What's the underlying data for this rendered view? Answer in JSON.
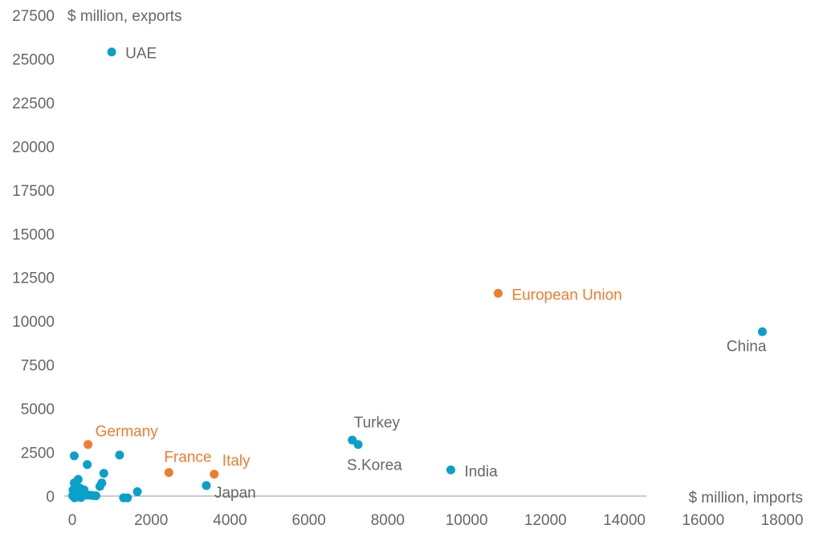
{
  "chart_data": {
    "type": "scatter",
    "title": "",
    "xlabel": "$ million, imports",
    "ylabel": "$ million, exports",
    "xlim": [
      0,
      18000
    ],
    "ylim": [
      0,
      27500
    ],
    "x_ticks": [
      "0",
      "2000",
      "4000",
      "6000",
      "8000",
      "10000",
      "12000",
      "14000",
      "16000",
      "18000"
    ],
    "y_ticks": [
      "0",
      "2500",
      "5000",
      "7500",
      "10000",
      "12500",
      "15000",
      "17500",
      "20000",
      "22500",
      "25000",
      "27500"
    ],
    "grid": false,
    "colors": {
      "blue": "#0aa0cc",
      "orange": "#ef7d2d",
      "label_gray": "#666666"
    },
    "points": [
      {
        "x": 1000,
        "y": 25400,
        "color": "blue",
        "label": "UAE",
        "label_color": "#666666"
      },
      {
        "x": 17500,
        "y": 9400,
        "color": "blue",
        "label": "China",
        "label_color": "#666666"
      },
      {
        "x": 10800,
        "y": 11600,
        "color": "orange",
        "label": "European Union",
        "label_color": "#ef7d2d"
      },
      {
        "x": 9600,
        "y": 1500,
        "color": "blue",
        "label": "India",
        "label_color": "#666666"
      },
      {
        "x": 7100,
        "y": 3200,
        "color": "blue",
        "label": "Turkey",
        "label_color": "#666666"
      },
      {
        "x": 7250,
        "y": 2950,
        "color": "blue",
        "label": "S.Korea",
        "label_color": "#666666"
      },
      {
        "x": 3400,
        "y": 600,
        "color": "blue",
        "label": "Japan",
        "label_color": "#666666"
      },
      {
        "x": 400,
        "y": 2950,
        "color": "orange",
        "label": "Germany",
        "label_color": "#ef7d2d"
      },
      {
        "x": 2450,
        "y": 1350,
        "color": "orange",
        "label": "France",
        "label_color": "#ef7d2d"
      },
      {
        "x": 3600,
        "y": 1250,
        "color": "orange",
        "label": "Italy",
        "label_color": "#ef7d2d"
      },
      {
        "x": 1200,
        "y": 2350,
        "color": "blue",
        "label": ""
      },
      {
        "x": 50,
        "y": 2300,
        "color": "blue",
        "label": ""
      },
      {
        "x": 380,
        "y": 1800,
        "color": "blue",
        "label": ""
      },
      {
        "x": 800,
        "y": 1300,
        "color": "blue",
        "label": ""
      },
      {
        "x": 750,
        "y": 750,
        "color": "blue",
        "label": ""
      },
      {
        "x": 700,
        "y": 550,
        "color": "blue",
        "label": ""
      },
      {
        "x": 1650,
        "y": 250,
        "color": "blue",
        "label": ""
      },
      {
        "x": 1300,
        "y": -100,
        "color": "blue",
        "label": ""
      },
      {
        "x": 1400,
        "y": -100,
        "color": "blue",
        "label": ""
      },
      {
        "x": 150,
        "y": 950,
        "color": "blue",
        "label": ""
      },
      {
        "x": 50,
        "y": 750,
        "color": "blue",
        "label": ""
      },
      {
        "x": 100,
        "y": 600,
        "color": "blue",
        "label": ""
      },
      {
        "x": 300,
        "y": 350,
        "color": "blue",
        "label": ""
      },
      {
        "x": 200,
        "y": 450,
        "color": "blue",
        "label": ""
      },
      {
        "x": 20,
        "y": 350,
        "color": "blue",
        "label": ""
      },
      {
        "x": 80,
        "y": 250,
        "color": "blue",
        "label": ""
      },
      {
        "x": 150,
        "y": 150,
        "color": "blue",
        "label": ""
      },
      {
        "x": 250,
        "y": 100,
        "color": "blue",
        "label": ""
      },
      {
        "x": 350,
        "y": 50,
        "color": "blue",
        "label": ""
      },
      {
        "x": 450,
        "y": 50,
        "color": "blue",
        "label": ""
      },
      {
        "x": 520,
        "y": 30,
        "color": "blue",
        "label": ""
      },
      {
        "x": 600,
        "y": 20,
        "color": "blue",
        "label": ""
      },
      {
        "x": 40,
        "y": 50,
        "color": "blue",
        "label": ""
      },
      {
        "x": 10,
        "y": 20,
        "color": "blue",
        "label": ""
      },
      {
        "x": 120,
        "y": -50,
        "color": "blue",
        "label": ""
      },
      {
        "x": 220,
        "y": -80,
        "color": "blue",
        "label": ""
      },
      {
        "x": 60,
        "y": -100,
        "color": "blue",
        "label": ""
      },
      {
        "x": 180,
        "y": 300,
        "color": "blue",
        "label": ""
      }
    ]
  }
}
